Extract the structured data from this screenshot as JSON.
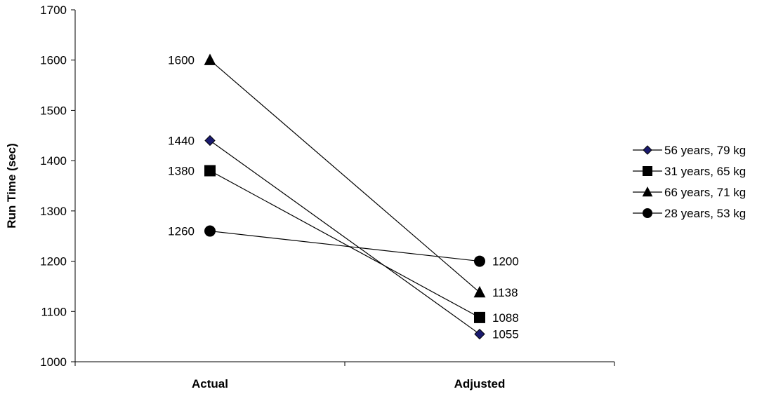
{
  "chart_data": {
    "type": "line",
    "title": "",
    "xlabel": "",
    "ylabel": "Run Time (sec)",
    "categories": [
      "Actual",
      "Adjusted"
    ],
    "ylim": [
      1000,
      1700
    ],
    "yticks": [
      1000,
      1100,
      1200,
      1300,
      1400,
      1500,
      1600,
      1700
    ],
    "grid": false,
    "legend_position": "right",
    "series": [
      {
        "name": "56 years, 79 kg",
        "marker": "diamond",
        "marker_color": "#1a1a6e",
        "values": [
          1440,
          1055
        ],
        "labels": [
          "1440",
          "1055"
        ]
      },
      {
        "name": "31 years, 65 kg",
        "marker": "square",
        "marker_color": "#000000",
        "values": [
          1380,
          1088
        ],
        "labels": [
          "1380",
          "1088"
        ]
      },
      {
        "name": "66 years, 71 kg",
        "marker": "triangle",
        "marker_color": "#000000",
        "values": [
          1600,
          1138
        ],
        "labels": [
          "1600",
          "1138"
        ]
      },
      {
        "name": "28 years, 53 kg",
        "marker": "circle",
        "marker_color": "#000000",
        "values": [
          1260,
          1200
        ],
        "labels": [
          "1260",
          "1200"
        ]
      }
    ]
  }
}
